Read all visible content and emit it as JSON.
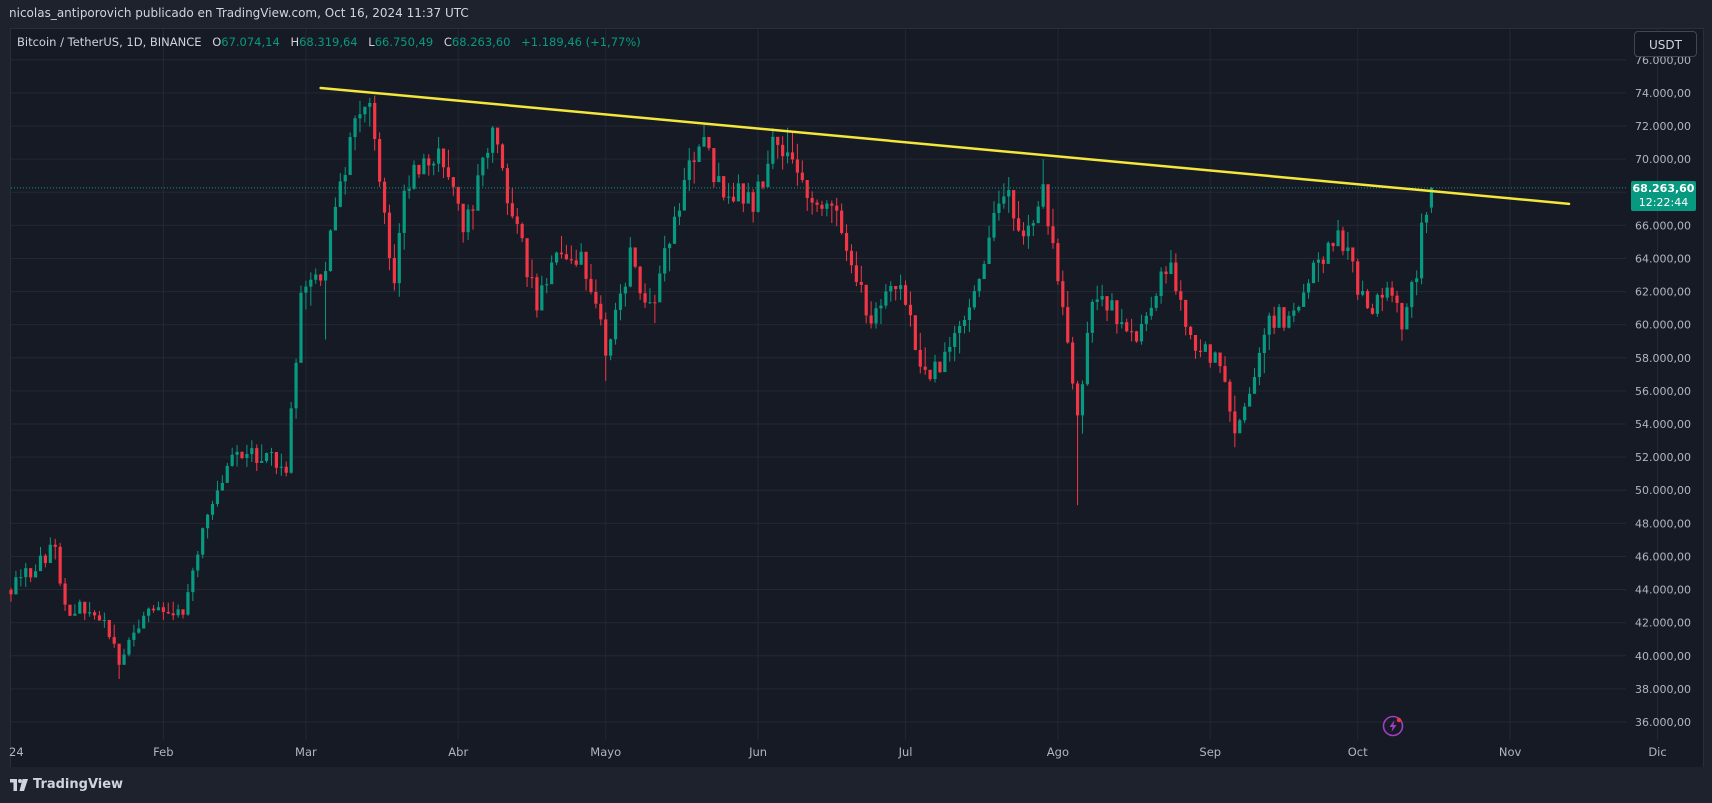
{
  "header": {
    "published_by": "nicolas_antiporovich publicado en TradingView.com, Oct 16, 2024 11:37 UTC"
  },
  "legend": {
    "symbol": "Bitcoin / TetherUS, 1D, BINANCE",
    "open_key": "O",
    "open": "67.074,14",
    "high_key": "H",
    "high": "68.319,64",
    "low_key": "L",
    "low": "66.750,49",
    "close_key": "C",
    "close": "68.263,60",
    "change": "+1.189,46 (+1,77%)"
  },
  "currency_button": "USDT",
  "price_tag": {
    "price": "68.263,60",
    "countdown": "12:22:44"
  },
  "footer": {
    "brand": "TradingView"
  },
  "colors": {
    "up": "#089981",
    "down": "#f23645",
    "trendline": "#f5e63c",
    "grid": "#242833",
    "axis_text": "#b2b5be",
    "background": "#161a25",
    "price_line": "#089981",
    "bolt": "#a03ec6"
  },
  "icons": {
    "brand_logo": "tradingview-logo-icon",
    "bolt": "lightning-bolt-icon"
  },
  "chart_data": {
    "type": "candlestick",
    "symbol": "Bitcoin / TetherUS",
    "interval": "1D",
    "exchange": "BINANCE",
    "x_axis_labels": [
      "24",
      "Feb",
      "Mar",
      "Abr",
      "Mayo",
      "Jun",
      "Jul",
      "Ago",
      "Sep",
      "Oct",
      "Nov",
      "Dic"
    ],
    "y_tick_labels": [
      "36.000,00",
      "38.000,00",
      "40.000,00",
      "42.000,00",
      "44.000,00",
      "46.000,00",
      "48.000,00",
      "50.000,00",
      "52.000,00",
      "54.000,00",
      "56.000,00",
      "58.000,00",
      "60.000,00",
      "62.000,00",
      "64.000,00",
      "66.000,00",
      "68.000,00",
      "70.000,00",
      "72.000,00",
      "74.000,00",
      "76.000,00"
    ],
    "y_ticks": [
      36000,
      38000,
      40000,
      42000,
      44000,
      46000,
      48000,
      50000,
      52000,
      54000,
      56000,
      58000,
      60000,
      62000,
      64000,
      66000,
      68000,
      70000,
      72000,
      74000,
      76000
    ],
    "ylim": [
      35000,
      76500
    ],
    "x_start": "2024-01-01",
    "x_end": "2024-12-07",
    "last_price": 68263.6,
    "trendline": {
      "from": {
        "date": "2024-03-04",
        "price": 74300
      },
      "to": {
        "date": "2024-11-13",
        "price": 67300
      }
    },
    "waypoints": [
      [
        "2024-01-01",
        44200
      ],
      [
        "2024-01-10",
        46500
      ],
      [
        "2024-01-12",
        42800
      ],
      [
        "2024-01-16",
        43000
      ],
      [
        "2024-01-21",
        41500
      ],
      [
        "2024-01-23",
        39600
      ],
      [
        "2024-01-26",
        41800
      ],
      [
        "2024-01-31",
        43200
      ],
      [
        "2024-02-05",
        42600
      ],
      [
        "2024-02-09",
        47500
      ],
      [
        "2024-02-14",
        51800
      ],
      [
        "2024-02-20",
        52200
      ],
      [
        "2024-02-26",
        51500
      ],
      [
        "2024-02-29",
        61500
      ],
      [
        "2024-03-05",
        63800
      ],
      [
        "2024-03-06",
        66100
      ],
      [
        "2024-03-11",
        72000
      ],
      [
        "2024-03-14",
        73100
      ],
      [
        "2024-03-19",
        61900
      ],
      [
        "2024-03-21",
        67900
      ],
      [
        "2024-03-25",
        69900
      ],
      [
        "2024-03-29",
        69900
      ],
      [
        "2024-04-02",
        65600
      ],
      [
        "2024-04-08",
        71600
      ],
      [
        "2024-04-12",
        66800
      ],
      [
        "2024-04-17",
        61300
      ],
      [
        "2024-04-21",
        64900
      ],
      [
        "2024-04-26",
        63800
      ],
      [
        "2024-04-30",
        60700
      ],
      [
        "2024-05-01",
        58300
      ],
      [
        "2024-05-06",
        64000
      ],
      [
        "2024-05-10",
        60800
      ],
      [
        "2024-05-15",
        66200
      ],
      [
        "2024-05-20",
        71400
      ],
      [
        "2024-05-24",
        68500
      ],
      [
        "2024-05-31",
        67500
      ],
      [
        "2024-06-04",
        70600
      ],
      [
        "2024-06-07",
        71000
      ],
      [
        "2024-06-11",
        67300
      ],
      [
        "2024-06-17",
        66500
      ],
      [
        "2024-06-24",
        60300
      ],
      [
        "2024-06-30",
        62700
      ],
      [
        "2024-07-05",
        56700
      ],
      [
        "2024-07-09",
        57800
      ],
      [
        "2024-07-14",
        60800
      ],
      [
        "2024-07-19",
        66700
      ],
      [
        "2024-07-22",
        67600
      ],
      [
        "2024-07-25",
        65300
      ],
      [
        "2024-07-29",
        68200
      ],
      [
        "2024-08-02",
        61400
      ],
      [
        "2024-08-05",
        54000
      ],
      [
        "2024-08-08",
        61700
      ],
      [
        "2024-08-13",
        60600
      ],
      [
        "2024-08-17",
        59000
      ],
      [
        "2024-08-20",
        61000
      ],
      [
        "2024-08-24",
        64200
      ],
      [
        "2024-08-27",
        59400
      ],
      [
        "2024-09-03",
        57500
      ],
      [
        "2024-09-06",
        53900
      ],
      [
        "2024-09-11",
        57700
      ],
      [
        "2024-09-13",
        60500
      ],
      [
        "2024-09-17",
        60300
      ],
      [
        "2024-09-22",
        63400
      ],
      [
        "2024-09-27",
        65800
      ],
      [
        "2024-09-30",
        63300
      ],
      [
        "2024-10-03",
        60600
      ],
      [
        "2024-10-07",
        62200
      ],
      [
        "2024-10-10",
        60300
      ],
      [
        "2024-10-13",
        62800
      ],
      [
        "2024-10-14",
        66100
      ],
      [
        "2024-10-16",
        68263.6
      ]
    ]
  }
}
